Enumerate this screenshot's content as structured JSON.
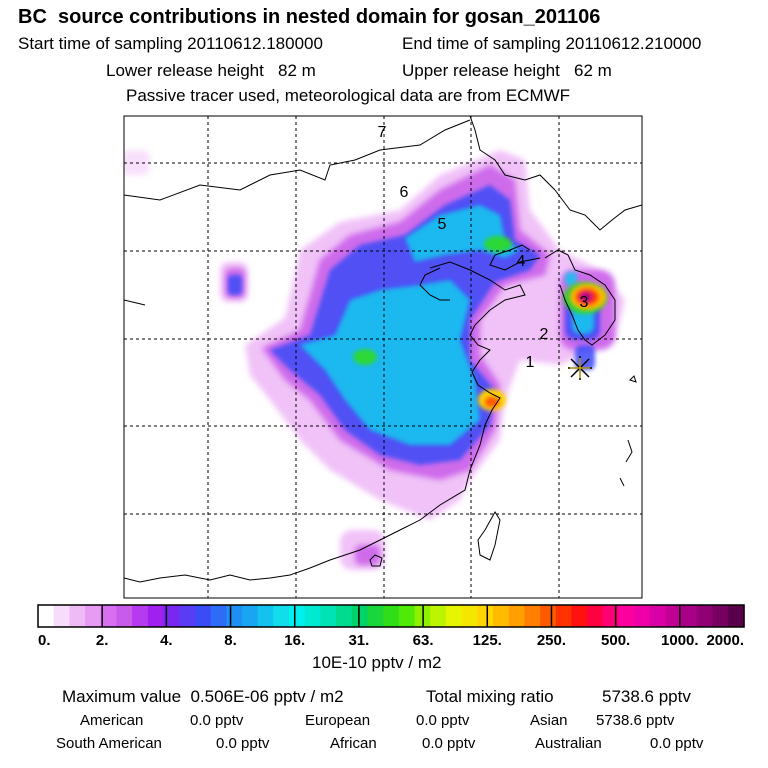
{
  "header": {
    "title": "BC  source contributions in nested domain for gosan_201106",
    "start_label": "Start time of sampling 20110612.180000",
    "end_label": "End time of sampling 20110612.210000",
    "lower_label": "Lower release height   82 m",
    "upper_label": "Upper release height   62 m",
    "tracer_label": "Passive tracer used, meteorological data are from ECMWF"
  },
  "map": {
    "time_labels": [
      "1",
      "2",
      "3",
      "4",
      "5",
      "6",
      "7"
    ],
    "receptor_icon": "star-icon"
  },
  "colorbar": {
    "tick_labels": [
      "0.",
      "2.",
      "4.",
      "8.",
      "16.",
      "31.",
      "63.",
      "125.",
      "250.",
      "500.",
      "1000.",
      "2000."
    ],
    "unit": "10E-10 pptv / m2",
    "colors": [
      "#ffffff",
      "#f7ddfb",
      "#efbbf7",
      "#e79bf3",
      "#d86ef2",
      "#c85be9",
      "#b63af0",
      "#a020f0",
      "#7a27f2",
      "#5a3cf5",
      "#3b4cf7",
      "#2c6cf6",
      "#1f8ef5",
      "#18a6f3",
      "#13c3ef",
      "#11ddec",
      "#00f0f0",
      "#00ead2",
      "#00e3b2",
      "#00db8f",
      "#00d468",
      "#18d63c",
      "#2fde17",
      "#4fea08",
      "#8ef000",
      "#bdf500",
      "#e6f500",
      "#f5e600",
      "#ffd400",
      "#ffbb00",
      "#ff9f00",
      "#ff7f00",
      "#ff5a00",
      "#ff3300",
      "#ff1111",
      "#ff0040",
      "#ff0077",
      "#ff00a0",
      "#ee00a8",
      "#d800a6",
      "#c20098",
      "#a90088",
      "#900075",
      "#750060",
      "#5a004a"
    ]
  },
  "stats": {
    "max_label": "Maximum value  0.506E-06 pptv / m2",
    "total_label": "Total mixing ratio",
    "total_value": "5738.6 pptv",
    "american_label": "American",
    "american_value": "0.0 pptv",
    "european_label": "European",
    "european_value": "0.0 pptv",
    "asian_label": "Asian",
    "asian_value": "5738.6 pptv",
    "south_american_label": "South American",
    "south_american_value": "0.0 pptv",
    "african_label": "African",
    "african_value": "0.0 pptv",
    "australian_label": "Australian",
    "australian_value": "0.0 pptv"
  }
}
